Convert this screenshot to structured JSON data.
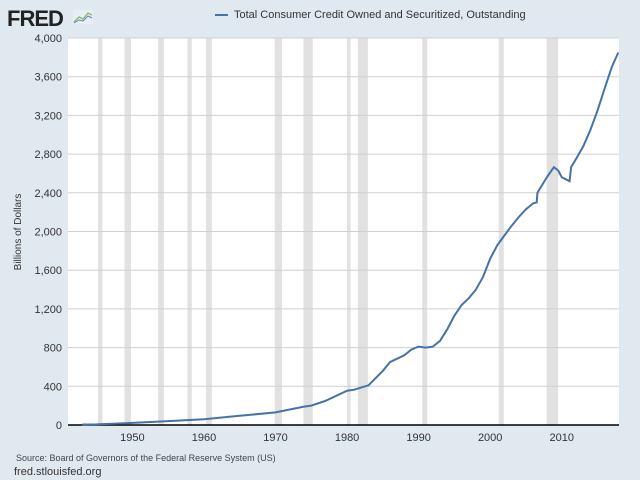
{
  "logo": {
    "text": "FRED"
  },
  "footer": {
    "source": "Source: Board of Governors of the Federal Reserve System (US)",
    "site": "fred.stlouisfed.org"
  },
  "colors": {
    "background": "#e1e9f0",
    "series": "#4572a7",
    "recession": "#e1e1e1",
    "grid": "#d0d0d0"
  },
  "chart_data": {
    "type": "line",
    "title": "",
    "xlabel": "",
    "ylabel": "Billions of Dollars",
    "xlim": [
      1941,
      2018
    ],
    "ylim": [
      0,
      4000
    ],
    "grid": true,
    "legend_position": "top",
    "x_ticks": [
      1950,
      1960,
      1970,
      1980,
      1990,
      2000,
      2010
    ],
    "x_tick_labels": [
      "1950",
      "1960",
      "1970",
      "1980",
      "1990",
      "2000",
      "2010"
    ],
    "y_ticks": [
      0,
      400,
      800,
      1200,
      1600,
      2000,
      2400,
      2800,
      3200,
      3600,
      4000
    ],
    "y_tick_labels": [
      "0",
      "400",
      "800",
      "1,200",
      "1,600",
      "2,000",
      "2,400",
      "2,800",
      "3,200",
      "3,600",
      "4,000"
    ],
    "recessions": [
      [
        1945.2,
        1945.8
      ],
      [
        1948.9,
        1949.8
      ],
      [
        1953.6,
        1954.4
      ],
      [
        1957.7,
        1958.3
      ],
      [
        1960.3,
        1961.1
      ],
      [
        1969.9,
        1970.9
      ],
      [
        1973.9,
        1975.2
      ],
      [
        1980.0,
        1980.5
      ],
      [
        1981.5,
        1982.9
      ],
      [
        1990.5,
        1991.2
      ],
      [
        2001.2,
        2001.9
      ],
      [
        2007.9,
        2009.5
      ]
    ],
    "series": [
      {
        "name": "Total Consumer Credit Owned and Securitized, Outstanding",
        "x": [
          1943,
          1945,
          1950,
          1955,
          1960,
          1965,
          1970,
          1974,
          1975,
          1977,
          1980,
          1981,
          1983,
          1985,
          1986,
          1988,
          1989,
          1990,
          1991,
          1992,
          1993,
          1994,
          1995,
          1996,
          1997,
          1998,
          1999,
          2000,
          2001,
          2002,
          2003,
          2004,
          2005,
          2006,
          2006.5,
          2006.6,
          2007,
          2008,
          2008.9,
          2009.5,
          2010,
          2011.1,
          2011.3,
          2012,
          2013,
          2014,
          2015,
          2016,
          2017,
          2017.9
        ],
        "values": [
          5,
          6,
          22,
          40,
          60,
          95,
          130,
          190,
          200,
          250,
          355,
          365,
          410,
          560,
          650,
          720,
          780,
          810,
          800,
          810,
          870,
          990,
          1130,
          1240,
          1310,
          1400,
          1530,
          1720,
          1860,
          1960,
          2060,
          2150,
          2230,
          2290,
          2300,
          2400,
          2450,
          2570,
          2665,
          2630,
          2560,
          2520,
          2665,
          2750,
          2880,
          3050,
          3250,
          3480,
          3700,
          3850
        ]
      }
    ]
  }
}
